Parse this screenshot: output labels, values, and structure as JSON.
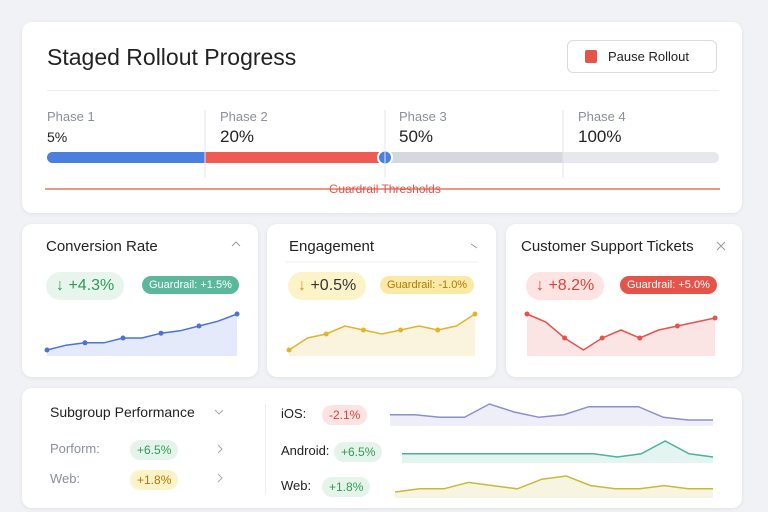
{
  "header": {
    "title": "Staged Rollout Progress",
    "button": "Pause Rollout"
  },
  "phases": [
    {
      "label": "Phase 1",
      "value": "5%"
    },
    {
      "label": "Phase 2",
      "value": "20%"
    },
    {
      "label": "Phase 3",
      "value": "50%"
    },
    {
      "label": "Phase 4",
      "value": "100%"
    }
  ],
  "guardrail_label": "Guardrail Thresholds",
  "cards": [
    {
      "title": "Conversion Rate",
      "delta": "+4.3%",
      "guardrail": "Guardrail: +1.5%",
      "color": "#4a72d8",
      "spark": [
        2,
        4,
        5,
        5,
        7,
        7,
        9,
        10,
        12,
        14,
        17
      ]
    },
    {
      "title": "Engagement",
      "delta": "+0.5%",
      "guardrail": "Guardrail: -1.0%",
      "color": "#e0b52a",
      "spark": [
        3,
        6,
        7,
        9,
        8,
        7,
        8,
        9,
        8,
        9,
        12
      ]
    },
    {
      "title": "Customer Support Tickets",
      "delta": "+8.2%",
      "guardrail": "Guardrail: +5.0%",
      "color": "#e5534b",
      "spark": [
        12,
        10,
        6,
        3,
        6,
        8,
        6,
        8,
        9,
        10,
        11
      ]
    }
  ],
  "subgroups": {
    "title": "Subgroup Performance",
    "rows": [
      {
        "label": "Porform:",
        "value": "+6.5%"
      },
      {
        "label": "Web:",
        "value": "+1.8%"
      }
    ],
    "series": [
      {
        "label": "iOS:",
        "value": "-2.1%",
        "color": "#8a8fd0",
        "spark": [
          5,
          5,
          4,
          4,
          9,
          6,
          4,
          5,
          8,
          8,
          8,
          4,
          3,
          3
        ]
      },
      {
        "label": "Android:",
        "value": "+6.5%",
        "color": "#4ab39a",
        "spark": [
          5,
          5,
          5,
          5,
          5,
          5,
          5,
          5,
          5,
          4,
          5,
          9,
          5,
          4
        ]
      },
      {
        "label": "Web:",
        "value": "+1.8%",
        "color": "#c9b93a",
        "spark": [
          3,
          4,
          4,
          6,
          5,
          4,
          7,
          8,
          5,
          4,
          4,
          5,
          4,
          4
        ]
      }
    ]
  }
}
